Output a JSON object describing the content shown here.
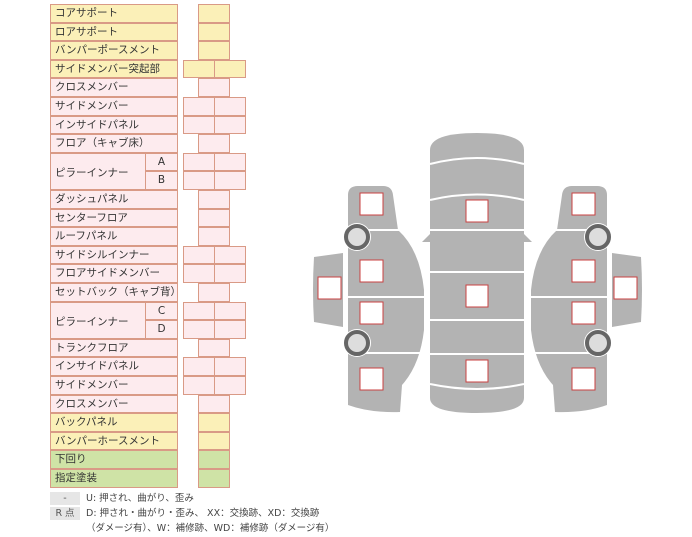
{
  "rows": [
    {
      "label": "コアサポート",
      "color": "y",
      "cells": 1
    },
    {
      "label": "ロアサポート",
      "color": "y",
      "cells": 1
    },
    {
      "label": "バンパーポースメント",
      "color": "y",
      "cells": 1
    },
    {
      "label": "サイドメンバー突起部",
      "color": "y",
      "cells": 2
    },
    {
      "label": "クロスメンバー",
      "color": "p",
      "cells": 1
    },
    {
      "label": "サイドメンバー",
      "color": "p",
      "cells": 2
    },
    {
      "label": "インサイドパネル",
      "color": "p",
      "cells": 2
    },
    {
      "label": "フロア（キャブ床）",
      "color": "p",
      "cells": 1
    },
    {
      "label": "ピラーインナー",
      "sub": "A",
      "color": "p",
      "cells": 2
    },
    {
      "label": "",
      "sub": "B",
      "color": "p",
      "cells": 2
    },
    {
      "label": "ダッシュパネル",
      "color": "p",
      "cells": 1
    },
    {
      "label": "センターフロア",
      "color": "p",
      "cells": 1
    },
    {
      "label": "ルーフパネル",
      "color": "p",
      "cells": 1
    },
    {
      "label": "サイドシルインナー",
      "color": "p",
      "cells": 2
    },
    {
      "label": "フロアサイドメンバー",
      "color": "p",
      "cells": 2
    },
    {
      "label": "セットバック（キャブ背）",
      "color": "p",
      "cells": 1
    },
    {
      "label": "ピラーインナー",
      "sub": "C",
      "color": "p",
      "cells": 2
    },
    {
      "label": "",
      "sub": "D",
      "color": "p",
      "cells": 2
    },
    {
      "label": "トランクフロア",
      "color": "p",
      "cells": 1
    },
    {
      "label": "インサイドパネル",
      "color": "p",
      "cells": 2
    },
    {
      "label": "サイドメンバー",
      "color": "p",
      "cells": 2
    },
    {
      "label": "クロスメンバー",
      "color": "p",
      "cells": 1
    },
    {
      "label": "バックパネル",
      "color": "y",
      "cells": 1
    },
    {
      "label": "バンパーホースメント",
      "color": "y",
      "cells": 1
    },
    {
      "label": "下回り",
      "color": "g",
      "cells": 1
    },
    {
      "label": "指定塗装",
      "color": "g",
      "cells": 1
    }
  ],
  "legend": [
    {
      "key": "-",
      "text": "U: 押され、曲がり、歪み"
    },
    {
      "key": "R 点",
      "text": "D: 押され・曲がり・歪み、 XX：交換跡、XD：交換跡",
      "text2": "（ダメージ有）、W：補修跡、WD：補修跡（ダメージ有）"
    }
  ],
  "colors": {
    "yellow": "#fbf0b8",
    "pink": "#fdebee",
    "green": "#cfe3a6",
    "border": "#d99a86",
    "car": "#b3b3b3",
    "mark": "#c84040"
  }
}
